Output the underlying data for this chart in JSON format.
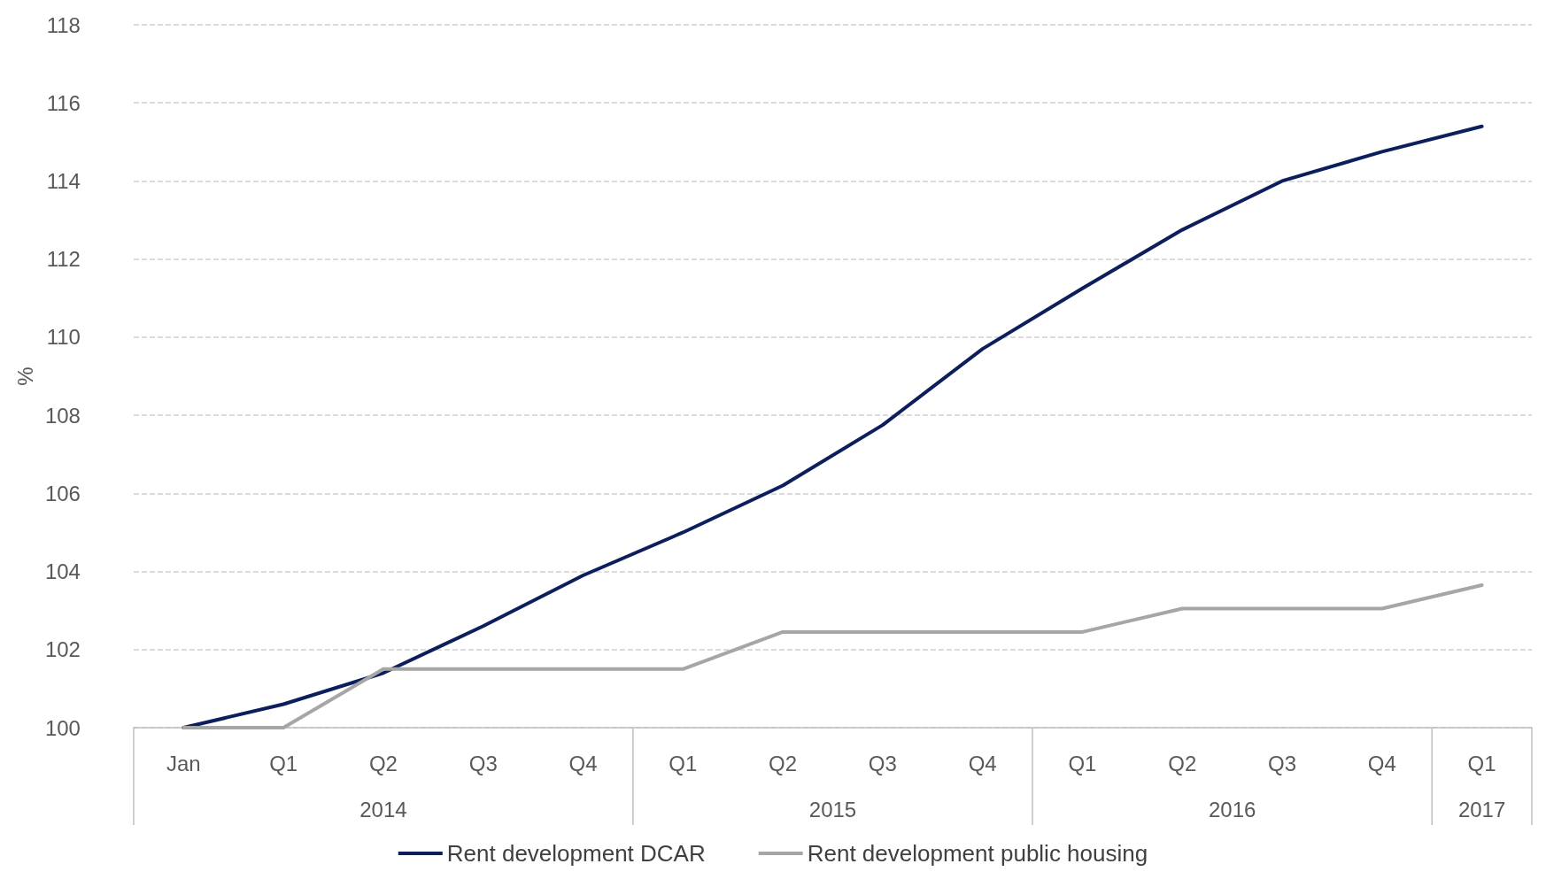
{
  "chart_data": {
    "type": "line",
    "ylabel": "%",
    "categories": [
      "Jan",
      "Q1",
      "Q2",
      "Q3",
      "Q4",
      "Q1",
      "Q2",
      "Q3",
      "Q4",
      "Q1",
      "Q2",
      "Q3",
      "Q4",
      "Q1"
    ],
    "series": [
      {
        "name": "Rent development DCAR",
        "color": "#0c1f5c",
        "values": [
          100,
          100.6,
          101.4,
          102.6,
          103.9,
          105.0,
          106.2,
          107.75,
          109.7,
          111.25,
          112.75,
          114.0,
          114.75,
          115.4
        ]
      },
      {
        "name": "Rent development public housing",
        "color": "#a6a6a6",
        "values": [
          100,
          100,
          101.5,
          101.5,
          101.5,
          101.5,
          102.45,
          102.45,
          102.45,
          102.45,
          103.05,
          103.05,
          103.05,
          103.65
        ]
      }
    ],
    "ylim": [
      100,
      118
    ],
    "yticks": [
      100,
      102,
      104,
      106,
      108,
      110,
      112,
      114,
      116,
      118
    ],
    "grid": "y",
    "legend": "bottom",
    "marker": "none",
    "line_style": "solid",
    "annotations": [
      "2014",
      "2015",
      "2016",
      "2017"
    ]
  }
}
